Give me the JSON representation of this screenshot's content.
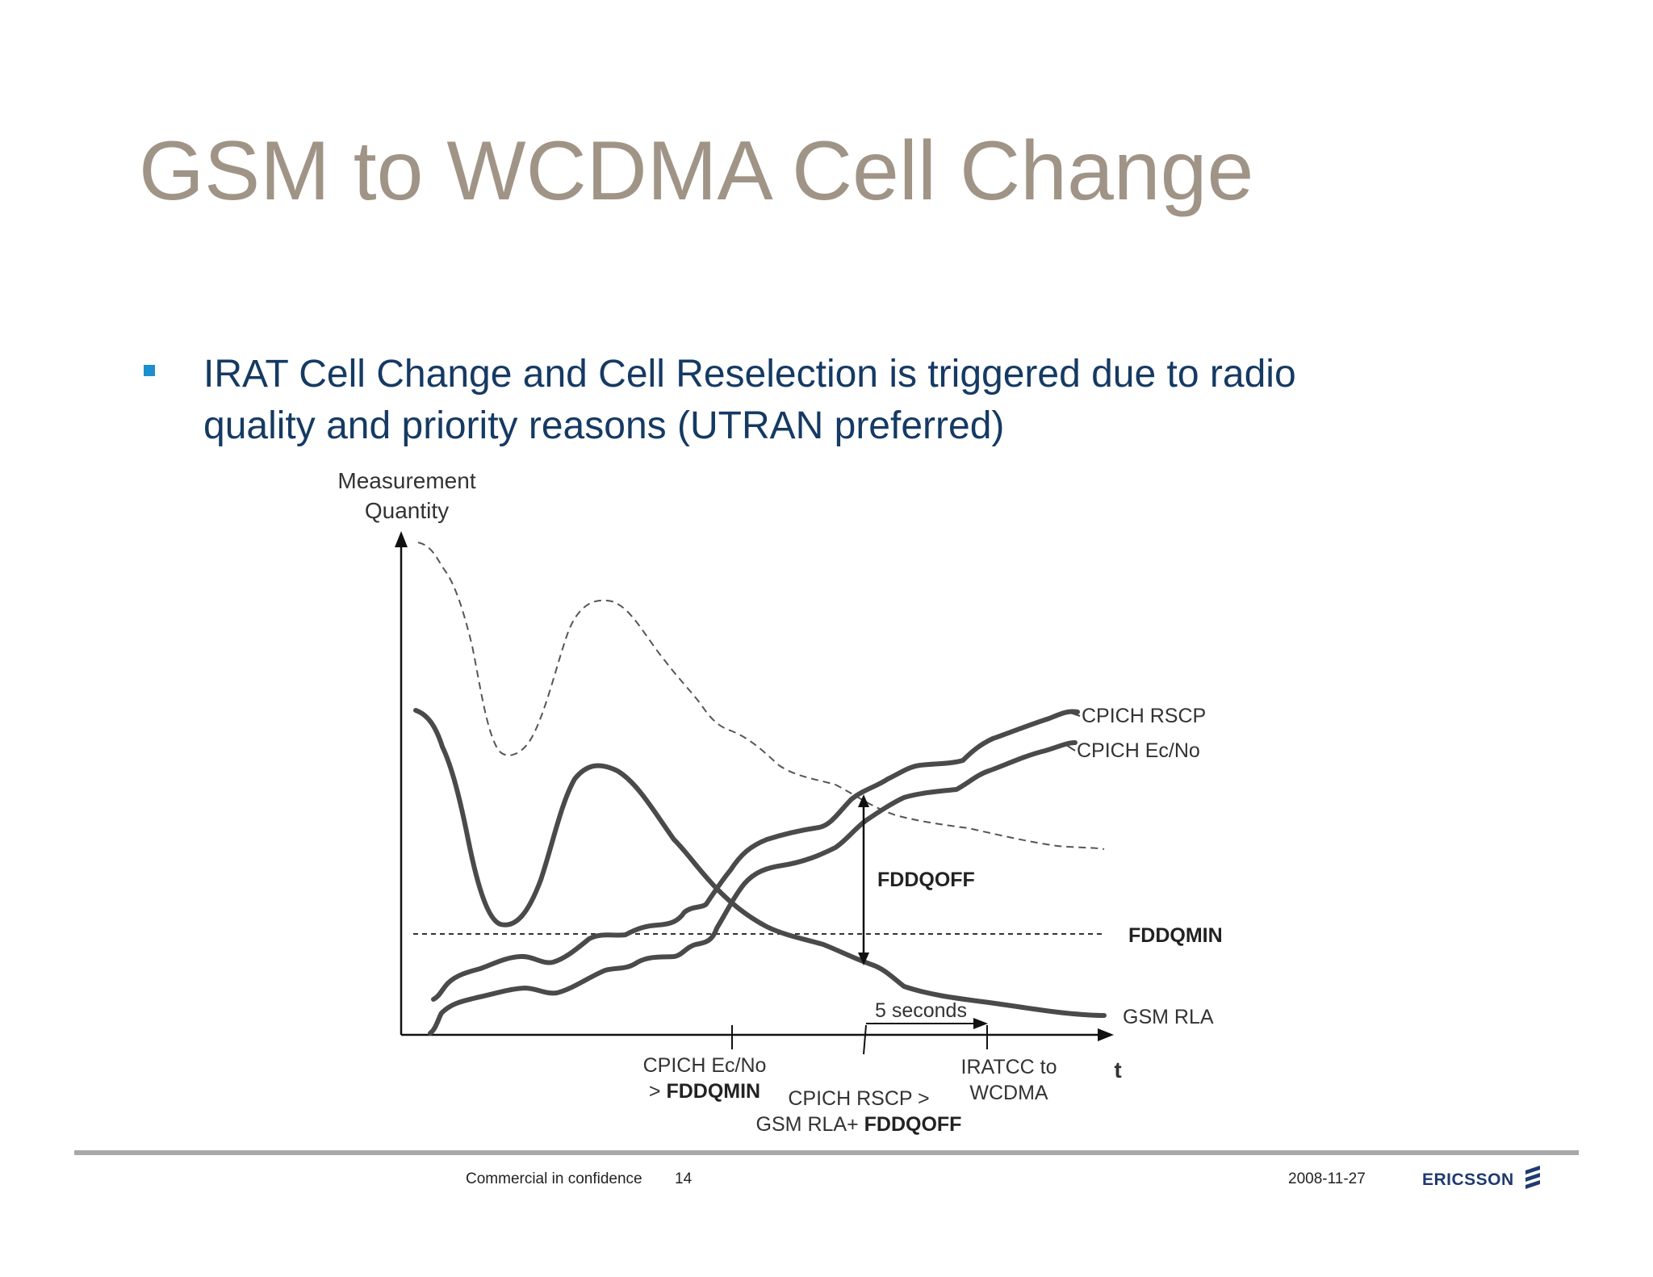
{
  "slide": {
    "title": "GSM to WCDMA Cell Change",
    "bullet": "IRAT Cell Change and Cell Reselection is triggered due to radio quality and priority reasons (UTRAN preferred)"
  },
  "diagram": {
    "y_axis_label_line1": "Measurement",
    "y_axis_label_line2": "Quantity",
    "x_axis_label": "t",
    "curve_cpich_rscp": "CPICH RSCP",
    "curve_cpich_ecno": "CPICH Ec/No",
    "threshold_fddqmin": "FDDQMIN",
    "curve_gsm_rla": "GSM RLA",
    "arrow_fddqoff": "FDDQOFF",
    "timer_label": "5 seconds",
    "event1_line1": "CPICH Ec/No",
    "event1_line2_prefix": "> ",
    "event1_line2_bold": "FDDQMIN",
    "event2_line1": "CPICH RSCP >",
    "event2_line2_prefix": "GSM RLA+ ",
    "event2_line2_bold": "FDDQOFF",
    "event3_line1": "IRATCC to",
    "event3_line2": "WCDMA",
    "colors": {
      "curve": "#4a4a4a",
      "dashed": "#555555"
    }
  },
  "footer": {
    "confidentiality": "Commercial in confidence",
    "page_number": "14",
    "date": "2008-11-27",
    "logo_text": "ERICSSON"
  }
}
